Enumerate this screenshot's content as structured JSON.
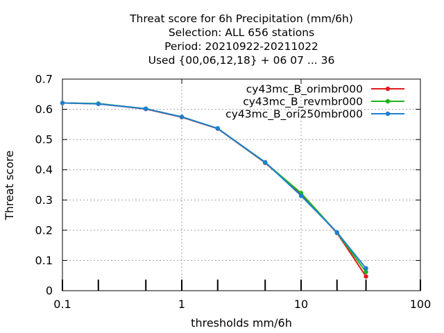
{
  "chart_data": {
    "type": "line",
    "title_lines": [
      "Threat score  for 6h Precipitation (mm/6h)",
      "Selection: ALL    656 stations",
      "Period: 20210922-20211022",
      "Used {00,06,12,18} + 06 07 ... 36"
    ],
    "xlabel": "thresholds mm/6h",
    "ylabel": "Threat score",
    "xscale": "log",
    "xlim": [
      0.1,
      100
    ],
    "ylim": [
      0,
      0.7
    ],
    "xticks": [
      0.1,
      1,
      10,
      100
    ],
    "xtick_labels": [
      "0.1",
      "1",
      "10",
      "100"
    ],
    "xminor_ticks": [
      0.2,
      0.5,
      2,
      5,
      20,
      35
    ],
    "yticks": [
      0,
      0.1,
      0.2,
      0.3,
      0.4,
      0.5,
      0.6,
      0.7
    ],
    "ytick_labels": [
      "0",
      "0.1",
      "0.2",
      "0.3",
      "0.4",
      "0.5",
      "0.6",
      "0.7"
    ],
    "grid": true,
    "legend_position": "top-right",
    "x": [
      0.1,
      0.2,
      0.5,
      1,
      2,
      5,
      10,
      20,
      35
    ],
    "series": [
      {
        "name": "cy43mc_B_orimbr000",
        "color": "#e41a1c",
        "values": [
          0.621,
          0.618,
          0.601,
          0.574,
          0.536,
          0.423,
          0.319,
          0.191,
          0.047
        ]
      },
      {
        "name": "cy43mc_B_revmbr000",
        "color": "#1db31d",
        "values": [
          0.621,
          0.619,
          0.602,
          0.575,
          0.537,
          0.424,
          0.323,
          0.192,
          0.062
        ]
      },
      {
        "name": "cy43mc_B_ori250mbr000",
        "color": "#1e7fd4",
        "values": [
          0.621,
          0.618,
          0.602,
          0.575,
          0.537,
          0.425,
          0.314,
          0.193,
          0.074
        ]
      }
    ]
  }
}
